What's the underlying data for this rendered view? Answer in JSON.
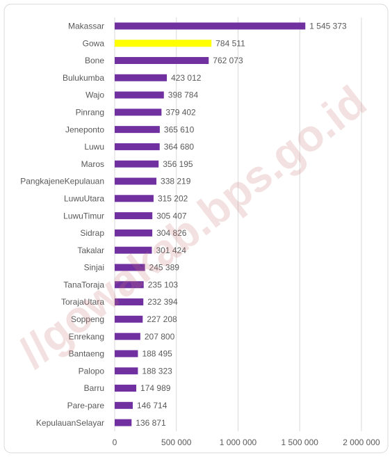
{
  "chart_data": {
    "type": "barh",
    "watermark": "//gowakab.bps.go.id",
    "categories": [
      "Makassar",
      "Gowa",
      "Bone",
      "Bulukumba",
      "Wajo",
      "Pinrang",
      "Jeneponto",
      "Luwu",
      "Maros",
      "PangkajeneKepulauan",
      "LuwuUtara",
      "LuwuTimur",
      "Sidrap",
      "Takalar",
      "Sinjai",
      "TanaToraja",
      "TorajaUtara",
      "Soppeng",
      "Enrekang",
      "Bantaeng",
      "Palopo",
      "Barru",
      "Pare-pare",
      "KepulauanSelayar"
    ],
    "values": [
      1545373,
      784511,
      762073,
      423012,
      398784,
      379402,
      365610,
      364680,
      356195,
      338219,
      315202,
      305407,
      304826,
      301424,
      245389,
      235103,
      232394,
      227208,
      207800,
      188495,
      188323,
      174989,
      146714,
      136871
    ],
    "value_labels": [
      "1 545 373",
      "784 511",
      "762 073",
      "423 012",
      "398 784",
      "379 402",
      "365 610",
      "364 680",
      "356 195",
      "338 219",
      "315 202",
      "305 407",
      "304 826",
      "301 424",
      "245 389",
      "235 103",
      "232 394",
      "227 208",
      "207 800",
      "188 495",
      "188 323",
      "174 989",
      "146 714",
      "136 871"
    ],
    "colors": [
      "#7030a0",
      "#ffff00",
      "#7030a0",
      "#7030a0",
      "#7030a0",
      "#7030a0",
      "#7030a0",
      "#7030a0",
      "#7030a0",
      "#7030a0",
      "#7030a0",
      "#7030a0",
      "#7030a0",
      "#7030a0",
      "#7030a0",
      "#7030a0",
      "#7030a0",
      "#7030a0",
      "#7030a0",
      "#7030a0",
      "#7030a0",
      "#7030a0",
      "#7030a0",
      "#7030a0"
    ],
    "xlim": [
      0,
      2000000
    ],
    "xticks": [
      0,
      {
        "value": 500000,
        "label": "500 000"
      },
      {
        "value": 1000000,
        "label": "1 000 000"
      },
      {
        "value": 1500000,
        "label": "1 500 000"
      },
      {
        "value": 2000000,
        "label": "2 000 000"
      }
    ],
    "grid": true
  }
}
